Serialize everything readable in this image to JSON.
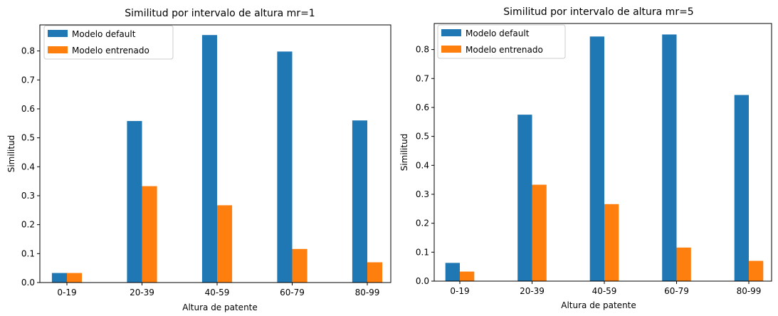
{
  "chart_data": [
    {
      "type": "bar",
      "title": "Similitud por intervalo de altura mr=1",
      "xlabel": "Altura de patente",
      "ylabel": "Similitud",
      "categories": [
        "0-19",
        "20-39",
        "40-59",
        "60-79",
        "80-99"
      ],
      "series": [
        {
          "name": "Modelo default",
          "values": [
            0.033,
            0.558,
            0.855,
            0.798,
            0.56
          ],
          "color": "#1f77b4"
        },
        {
          "name": "Modelo entrenado",
          "values": [
            0.033,
            0.333,
            0.267,
            0.116,
            0.07
          ],
          "color": "#ff7f0e"
        }
      ],
      "ylim": [
        0,
        0.89
      ],
      "yticks": [
        "0.0",
        "0.1",
        "0.2",
        "0.3",
        "0.4",
        "0.5",
        "0.6",
        "0.7",
        "0.8"
      ],
      "grid": false,
      "legend": "top-left"
    },
    {
      "type": "bar",
      "title": "Similitud por intervalo de altura mr=5",
      "xlabel": "Altura de patente",
      "ylabel": "Similitud",
      "categories": [
        "0-19",
        "20-39",
        "40-59",
        "60-79",
        "80-99"
      ],
      "series": [
        {
          "name": "Modelo default",
          "values": [
            0.063,
            0.575,
            0.845,
            0.852,
            0.643
          ],
          "color": "#1f77b4"
        },
        {
          "name": "Modelo entrenado",
          "values": [
            0.033,
            0.333,
            0.266,
            0.116,
            0.07
          ],
          "color": "#ff7f0e"
        }
      ],
      "ylim": [
        0,
        0.89
      ],
      "yticks": [
        "0.0",
        "0.1",
        "0.2",
        "0.3",
        "0.4",
        "0.5",
        "0.6",
        "0.7",
        "0.8"
      ],
      "grid": false,
      "legend": "top-left"
    }
  ]
}
